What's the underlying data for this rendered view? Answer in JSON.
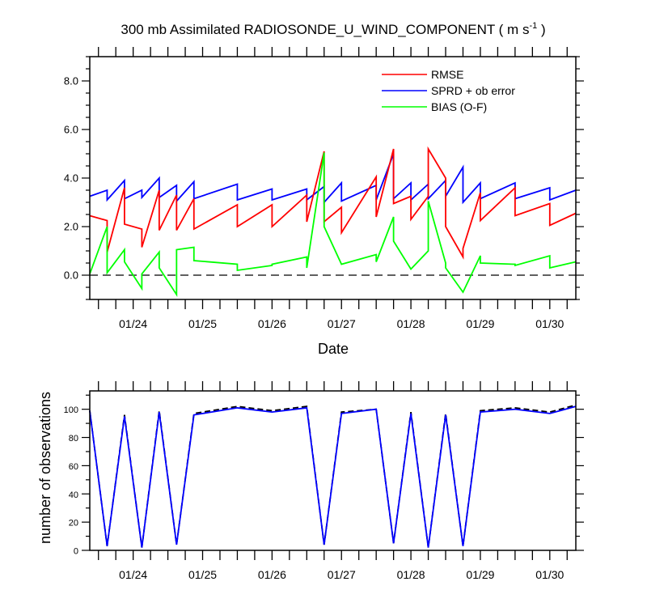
{
  "chart_data": [
    {
      "type": "line",
      "title": "300 mb Assimilated RADIOSONDE_U_WIND_COMPONENT ( m s",
      "title_superscript": "-1",
      "title_suffix": " )",
      "xlabel": "Date",
      "ylabel": "",
      "x_tick_labels": [
        "01/24",
        "01/25",
        "01/26",
        "01/27",
        "01/28",
        "01/29",
        "01/30"
      ],
      "x_tick_positions_days": [
        1,
        2,
        3,
        4,
        5,
        6,
        7
      ],
      "x_range_days": [
        0.375,
        7.375
      ],
      "ylim": [
        -1,
        9
      ],
      "y_ticks": [
        0,
        2,
        4,
        6,
        8
      ],
      "y_tick_labels": [
        "0.0",
        "2.0",
        "4.0",
        "6.0",
        "8.0"
      ],
      "zero_line": "dashed",
      "legend_position": "top-right",
      "series": [
        {
          "name": "RMSE",
          "color": "#ff0000",
          "points": [
            [
              0.375,
              2.45
            ],
            [
              0.625,
              2.25
            ],
            [
              0.625,
              0.95
            ],
            [
              0.875,
              3.6
            ],
            [
              0.875,
              2.1
            ],
            [
              1.125,
              1.9
            ],
            [
              1.125,
              1.15
            ],
            [
              1.375,
              3.5
            ],
            [
              1.375,
              1.85
            ],
            [
              1.625,
              3.3
            ],
            [
              1.625,
              1.85
            ],
            [
              1.875,
              3.15
            ],
            [
              1.875,
              1.9
            ],
            [
              2.5,
              2.9
            ],
            [
              2.5,
              2.0
            ],
            [
              3.0,
              2.9
            ],
            [
              3.0,
              2.0
            ],
            [
              3.5,
              3.3
            ],
            [
              3.5,
              2.2
            ],
            [
              3.75,
              5.1
            ],
            [
              3.75,
              2.2
            ],
            [
              4.0,
              2.8
            ],
            [
              4.0,
              1.75
            ],
            [
              4.5,
              4.05
            ],
            [
              4.5,
              2.4
            ],
            [
              4.75,
              5.2
            ],
            [
              4.75,
              2.95
            ],
            [
              5.0,
              3.25
            ],
            [
              5.0,
              2.3
            ],
            [
              5.25,
              3.25
            ],
            [
              5.25,
              5.2
            ],
            [
              5.5,
              4.0
            ],
            [
              5.5,
              2.0
            ],
            [
              5.75,
              0.75
            ],
            [
              5.75,
              1.1
            ],
            [
              6.0,
              3.4
            ],
            [
              6.0,
              2.25
            ],
            [
              6.5,
              3.6
            ],
            [
              6.5,
              2.45
            ],
            [
              7.0,
              2.95
            ],
            [
              7.0,
              2.05
            ],
            [
              7.375,
              2.55
            ]
          ]
        },
        {
          "name": "SPRD + ob error",
          "color": "#0000ff",
          "points": [
            [
              0.375,
              3.25
            ],
            [
              0.625,
              3.5
            ],
            [
              0.625,
              3.1
            ],
            [
              0.875,
              3.9
            ],
            [
              0.875,
              3.15
            ],
            [
              1.125,
              3.5
            ],
            [
              1.125,
              3.2
            ],
            [
              1.375,
              4.0
            ],
            [
              1.375,
              3.2
            ],
            [
              1.625,
              3.7
            ],
            [
              1.625,
              3.05
            ],
            [
              1.875,
              3.85
            ],
            [
              1.875,
              3.15
            ],
            [
              2.5,
              3.75
            ],
            [
              2.5,
              3.1
            ],
            [
              3.0,
              3.55
            ],
            [
              3.0,
              3.1
            ],
            [
              3.5,
              3.55
            ],
            [
              3.5,
              3.1
            ],
            [
              3.75,
              3.65
            ],
            [
              3.75,
              3.0
            ],
            [
              4.0,
              3.8
            ],
            [
              4.0,
              3.05
            ],
            [
              4.5,
              3.7
            ],
            [
              4.5,
              3.1
            ],
            [
              4.75,
              5.0
            ],
            [
              4.75,
              3.15
            ],
            [
              5.0,
              3.8
            ],
            [
              5.0,
              3.1
            ],
            [
              5.25,
              3.75
            ],
            [
              5.25,
              3.15
            ],
            [
              5.5,
              3.9
            ],
            [
              5.5,
              3.25
            ],
            [
              5.75,
              4.45
            ],
            [
              5.75,
              3.0
            ],
            [
              6.0,
              3.8
            ],
            [
              6.0,
              3.15
            ],
            [
              6.5,
              3.8
            ],
            [
              6.5,
              3.15
            ],
            [
              7.0,
              3.6
            ],
            [
              7.0,
              3.1
            ],
            [
              7.375,
              3.5
            ]
          ]
        },
        {
          "name": "BIAS (O-F)",
          "color": "#00ff00",
          "points": [
            [
              0.375,
              0.05
            ],
            [
              0.625,
              2.0
            ],
            [
              0.625,
              0.1
            ],
            [
              0.875,
              1.05
            ],
            [
              0.875,
              0.55
            ],
            [
              1.125,
              -0.55
            ],
            [
              1.125,
              0.05
            ],
            [
              1.375,
              0.95
            ],
            [
              1.375,
              0.3
            ],
            [
              1.625,
              -0.8
            ],
            [
              1.625,
              1.05
            ],
            [
              1.875,
              1.15
            ],
            [
              1.875,
              0.6
            ],
            [
              2.5,
              0.45
            ],
            [
              2.5,
              0.2
            ],
            [
              3.0,
              0.4
            ],
            [
              3.0,
              0.45
            ],
            [
              3.5,
              0.75
            ],
            [
              3.5,
              0.3
            ],
            [
              3.75,
              5.05
            ],
            [
              3.75,
              2.0
            ],
            [
              4.0,
              0.45
            ],
            [
              4.5,
              0.85
            ],
            [
              4.5,
              0.55
            ],
            [
              4.75,
              2.4
            ],
            [
              4.75,
              1.4
            ],
            [
              5.0,
              0.25
            ],
            [
              5.25,
              1.0
            ],
            [
              5.25,
              3.05
            ],
            [
              5.5,
              0.5
            ],
            [
              5.5,
              0.3
            ],
            [
              5.75,
              -0.7
            ],
            [
              6.0,
              0.8
            ],
            [
              6.0,
              0.5
            ],
            [
              6.5,
              0.45
            ],
            [
              6.5,
              0.4
            ],
            [
              7.0,
              0.8
            ],
            [
              7.0,
              0.3
            ],
            [
              7.375,
              0.55
            ]
          ]
        }
      ]
    },
    {
      "type": "line",
      "title": "",
      "xlabel": "",
      "ylabel": "number of observations",
      "x_tick_labels": [
        "01/24",
        "01/25",
        "01/26",
        "01/27",
        "01/28",
        "01/29",
        "01/30"
      ],
      "x_tick_positions_days": [
        1,
        2,
        3,
        4,
        5,
        6,
        7
      ],
      "x_range_days": [
        0.375,
        7.375
      ],
      "ylim": [
        0,
        113
      ],
      "y_ticks": [
        0,
        20,
        40,
        60,
        80,
        100
      ],
      "y_tick_labels": [
        "0",
        "20",
        "40",
        "60",
        "80",
        "100"
      ],
      "series": [
        {
          "name": "dashed",
          "color": "#000000",
          "dash": true,
          "points": [
            [
              0.375,
              99
            ],
            [
              0.625,
              3
            ],
            [
              0.875,
              96
            ],
            [
              1.125,
              2
            ],
            [
              1.375,
              99
            ],
            [
              1.625,
              4
            ],
            [
              1.875,
              97
            ],
            [
              2.5,
              102
            ],
            [
              3.0,
              99
            ],
            [
              3.5,
              102
            ],
            [
              3.75,
              4
            ],
            [
              4.0,
              98
            ],
            [
              4.5,
              100
            ],
            [
              4.75,
              5
            ],
            [
              5.0,
              98
            ],
            [
              5.25,
              2
            ],
            [
              5.5,
              97
            ],
            [
              5.75,
              3
            ],
            [
              6.0,
              99
            ],
            [
              6.5,
              101
            ],
            [
              7.0,
              98
            ],
            [
              7.375,
              103
            ]
          ]
        },
        {
          "name": "solid",
          "color": "#0000ff",
          "dash": false,
          "points": [
            [
              0.375,
              99
            ],
            [
              0.625,
              3
            ],
            [
              0.875,
              95
            ],
            [
              1.125,
              2
            ],
            [
              1.375,
              98
            ],
            [
              1.625,
              4
            ],
            [
              1.875,
              96
            ],
            [
              2.5,
              101
            ],
            [
              3.0,
              98
            ],
            [
              3.5,
              101
            ],
            [
              3.75,
              4
            ],
            [
              4.0,
              97
            ],
            [
              4.5,
              100
            ],
            [
              4.75,
              5
            ],
            [
              5.0,
              97
            ],
            [
              5.25,
              2
            ],
            [
              5.5,
              96
            ],
            [
              5.75,
              3
            ],
            [
              6.0,
              98
            ],
            [
              6.5,
              100
            ],
            [
              7.0,
              97
            ],
            [
              7.375,
              102
            ]
          ]
        }
      ]
    }
  ]
}
